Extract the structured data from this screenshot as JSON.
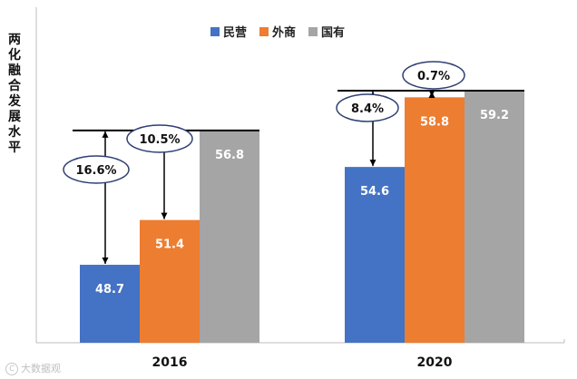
{
  "chart_data": {
    "type": "bar",
    "title": "",
    "xlabel": "",
    "ylabel": "两化融合发展水平",
    "categories": [
      "2016",
      "2020"
    ],
    "series": [
      {
        "name": "民营",
        "color": "#4472C4",
        "values": [
          48.7,
          54.6
        ]
      },
      {
        "name": "外商",
        "color": "#ED7D31",
        "values": [
          51.4,
          58.8
        ]
      },
      {
        "name": "国有",
        "color": "#A5A5A5",
        "values": [
          56.8,
          59.2
        ]
      }
    ],
    "ylim": [
      44,
      62
    ],
    "gap_annotations": [
      {
        "category": "2016",
        "from_series": "民营",
        "to_series": "国有",
        "label": "16.6%"
      },
      {
        "category": "2016",
        "from_series": "外商",
        "to_series": "国有",
        "label": "10.5%"
      },
      {
        "category": "2020",
        "from_series": "民营",
        "to_series": "国有",
        "label": "8.4%"
      },
      {
        "category": "2020",
        "from_series": "外商",
        "to_series": "国有",
        "label": "0.7%"
      }
    ]
  },
  "watermark": "大数据观",
  "watermark_icon": "C"
}
